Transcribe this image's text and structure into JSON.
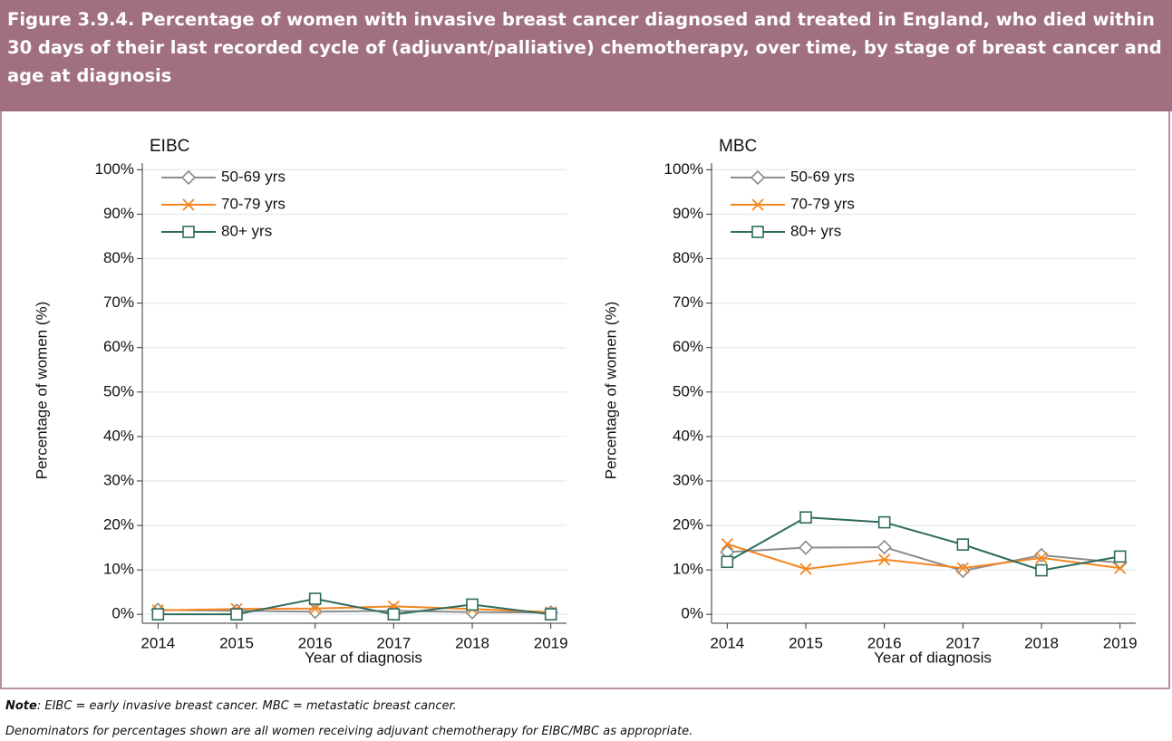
{
  "header": {
    "title": "Figure 3.9.4. Percentage of women with invasive breast cancer diagnosed and treated in England, who died within 30 days of their last recorded cycle of (adjuvant/palliative) chemotherapy, over time, by stage of breast cancer and age at diagnosis"
  },
  "notes": {
    "label": "Note",
    "line1": ": EIBC = early invasive breast cancer. MBC = metastatic breast cancer.",
    "line2": "Denominators for percentages shown are all women receiving adjuvant chemotherapy for EIBC/MBC as appropriate."
  },
  "chart_data": [
    {
      "type": "line",
      "title": "EIBC",
      "x_label": "Year of diagnosis",
      "y_label": "Percentage of women (%)",
      "x": [
        2014,
        2015,
        2016,
        2017,
        2018,
        2019
      ],
      "xlim": [
        2013.8,
        2019.2
      ],
      "xticks": [
        2014,
        2015,
        2016,
        2017,
        2018,
        2019
      ],
      "ylim": [
        -2,
        101.5
      ],
      "yticks": [
        {
          "value": 0,
          "label": "0%"
        },
        {
          "value": 10,
          "label": "10%"
        },
        {
          "value": 20,
          "label": "20%"
        },
        {
          "value": 30,
          "label": "30%"
        },
        {
          "value": 40,
          "label": "40%"
        },
        {
          "value": 50,
          "label": "50%"
        },
        {
          "value": 60,
          "label": "60%"
        },
        {
          "value": 70,
          "label": "70%"
        },
        {
          "value": 80,
          "label": "80%"
        },
        {
          "value": 90,
          "label": "90%"
        },
        {
          "value": 100,
          "label": "100%"
        }
      ],
      "grid": true,
      "legend": "top-left",
      "series": [
        {
          "name": "50-69 yrs",
          "color": "#8c8c8c",
          "marker": "diamond",
          "values": [
            1.0,
            0.8,
            0.6,
            0.8,
            0.5,
            0.4
          ]
        },
        {
          "name": "70-79 yrs",
          "color": "#f5861f",
          "marker": "x",
          "values": [
            0.9,
            1.2,
            1.3,
            1.8,
            1.2,
            0.5
          ]
        },
        {
          "name": "80+ yrs",
          "color": "#2e6b5e",
          "marker": "square",
          "values": [
            0,
            0,
            3.5,
            0,
            2.2,
            0
          ]
        }
      ]
    },
    {
      "type": "line",
      "title": "MBC",
      "x_label": "Year of diagnosis",
      "y_label": "Percentage of women (%)",
      "x": [
        2014,
        2015,
        2016,
        2017,
        2018,
        2019
      ],
      "xlim": [
        2013.8,
        2019.2
      ],
      "xticks": [
        2014,
        2015,
        2016,
        2017,
        2018,
        2019
      ],
      "ylim": [
        -2,
        101.5
      ],
      "yticks": [
        {
          "value": 0,
          "label": "0%"
        },
        {
          "value": 10,
          "label": "10%"
        },
        {
          "value": 20,
          "label": "20%"
        },
        {
          "value": 30,
          "label": "30%"
        },
        {
          "value": 40,
          "label": "40%"
        },
        {
          "value": 50,
          "label": "50%"
        },
        {
          "value": 60,
          "label": "60%"
        },
        {
          "value": 70,
          "label": "70%"
        },
        {
          "value": 80,
          "label": "80%"
        },
        {
          "value": 90,
          "label": "90%"
        },
        {
          "value": 100,
          "label": "100%"
        }
      ],
      "grid": true,
      "legend": "top-left",
      "series": [
        {
          "name": "50-69 yrs",
          "color": "#8c8c8c",
          "marker": "diamond",
          "values": [
            14.0,
            15.0,
            15.1,
            9.8,
            13.3,
            11.6
          ]
        },
        {
          "name": "70-79 yrs",
          "color": "#f5861f",
          "marker": "x",
          "values": [
            15.8,
            10.2,
            12.3,
            10.4,
            12.7,
            10.4
          ]
        },
        {
          "name": "80+ yrs",
          "color": "#2e6b5e",
          "marker": "square",
          "values": [
            11.8,
            21.8,
            20.7,
            15.7,
            9.9,
            13.0
          ]
        }
      ]
    }
  ]
}
